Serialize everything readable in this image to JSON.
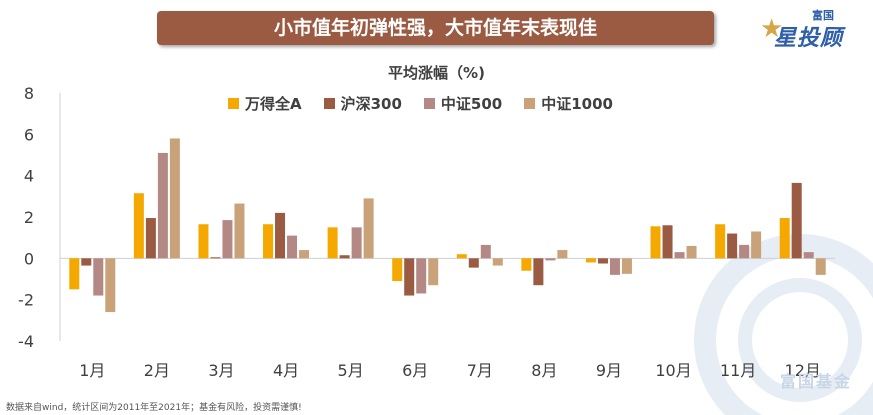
{
  "banner": {
    "title": "小市值年初弹性强，大市值年末表现佳"
  },
  "logo": {
    "text": "星投顾",
    "small": "富国"
  },
  "watermark": {
    "text": "富国基金"
  },
  "footnote": "数据来自wind，统计区间为2011年至2021年；基金有风险，投资需谨慎!",
  "colors": {
    "banner": "#9b5a42",
    "wande": "#f5a800",
    "hs300": "#9b5a42",
    "zz500": "#b38885",
    "zz1000": "#c9a27a"
  },
  "chart_data": {
    "type": "bar",
    "title": "平均涨幅（%)",
    "categories": [
      "1月",
      "2月",
      "3月",
      "4月",
      "5月",
      "6月",
      "7月",
      "8月",
      "9月",
      "10月",
      "11月",
      "12月"
    ],
    "ylim": [
      -4,
      8
    ],
    "yticks": [
      "8",
      "6",
      "4",
      "2",
      "0",
      "-2",
      "-4"
    ],
    "ytick_values": [
      8,
      6,
      4,
      2,
      0,
      -2,
      -4
    ],
    "legend_position": "top",
    "grid": false,
    "series": [
      {
        "name": "万得全A",
        "color": "#f5a800",
        "values": [
          -1.5,
          3.15,
          1.65,
          1.65,
          1.5,
          -1.1,
          0.2,
          -0.6,
          -0.2,
          1.55,
          1.65,
          1.95
        ]
      },
      {
        "name": "沪深300",
        "color": "#9b5a42",
        "values": [
          -0.35,
          1.95,
          0.05,
          2.2,
          0.15,
          -1.8,
          -0.45,
          -1.3,
          -0.25,
          1.6,
          1.2,
          3.65
        ]
      },
      {
        "name": "中证500",
        "color": "#b38885",
        "values": [
          -1.8,
          5.1,
          1.85,
          1.1,
          1.5,
          -1.7,
          0.65,
          -0.1,
          -0.8,
          0.3,
          0.65,
          0.3
        ]
      },
      {
        "name": "中证1000",
        "color": "#c9a27a",
        "values": [
          -2.6,
          5.8,
          2.65,
          0.4,
          2.9,
          -1.3,
          -0.35,
          0.4,
          -0.75,
          0.6,
          1.3,
          -0.8
        ]
      }
    ]
  }
}
